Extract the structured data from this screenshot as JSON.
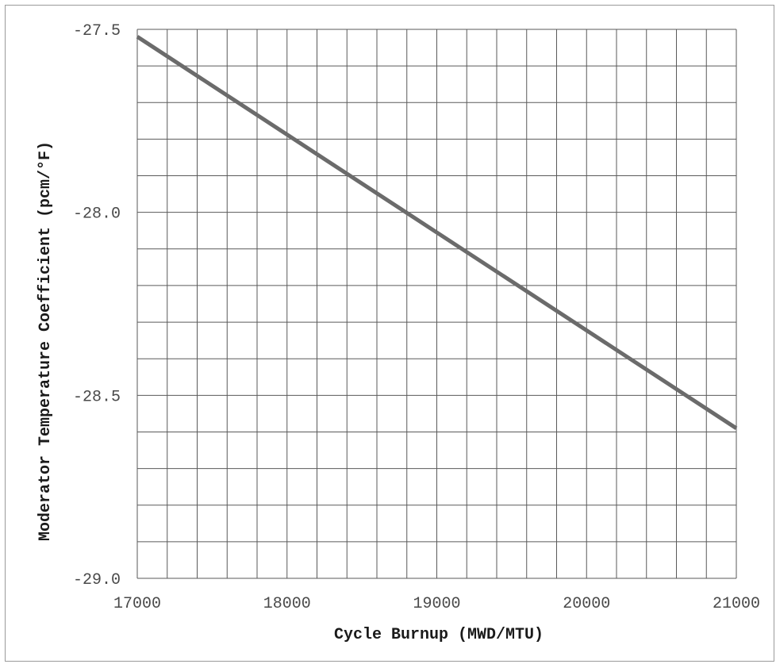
{
  "chart_data": {
    "type": "line",
    "title": "",
    "xlabel": "Cycle Burnup (MWD/MTU)",
    "ylabel": "Moderator Temperature Coefficient (pcm/°F)",
    "xlim": [
      17000,
      21000
    ],
    "ylim": [
      -29.0,
      -27.5
    ],
    "x_ticks": [
      "17000",
      "18000",
      "19000",
      "20000",
      "21000"
    ],
    "y_ticks": [
      "-27.5",
      "-28.0",
      "-28.5",
      "-29.0"
    ],
    "x_minor_step": 200,
    "y_minor_step": 0.1,
    "grid": true,
    "series": [
      {
        "x": [
          17000,
          21000
        ],
        "y": [
          -27.52,
          -28.59
        ]
      }
    ],
    "colors": {
      "line": "#6b6b6b",
      "grid": "#5a5a5a",
      "frame": "#9a9a9a"
    }
  }
}
